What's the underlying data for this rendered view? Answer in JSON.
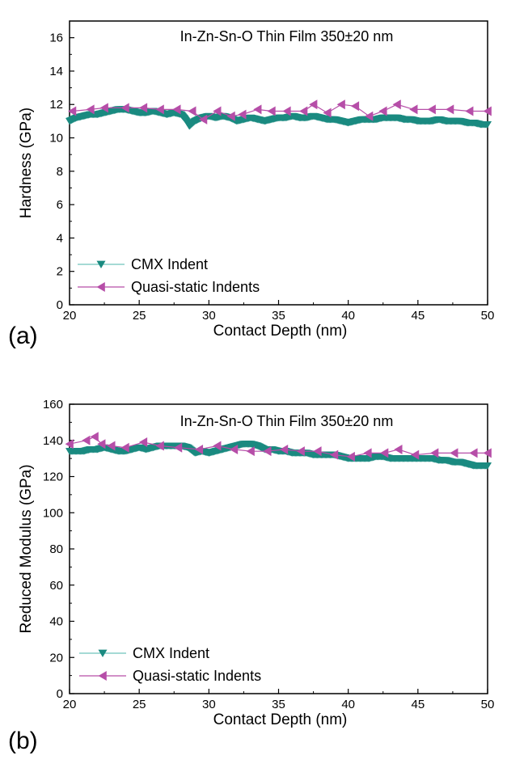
{
  "colors": {
    "cmx": "#1a8a80",
    "cmx_line": "#6fc4bc",
    "quasi": "#b64ea8",
    "axis": "#000000"
  },
  "chart_data": [
    {
      "type": "line",
      "panel_label": "(a)",
      "title": "In-Zn-Sn-O Thin Film 350±20 nm",
      "xlabel": "Contact Depth (nm)",
      "ylabel": "Hardness (GPa)",
      "xlim": [
        20,
        50
      ],
      "ylim": [
        0,
        17
      ],
      "xticks": [
        20,
        25,
        30,
        35,
        40,
        45,
        50
      ],
      "yticks": [
        0,
        2,
        4,
        6,
        8,
        10,
        12,
        14,
        16
      ],
      "legend_position": "bottom-left",
      "series": [
        {
          "name": "CMX Indent",
          "marker": "triangle-down",
          "dense": true,
          "x": [
            20,
            20.5,
            21,
            21.5,
            22,
            22.5,
            23,
            23.5,
            24,
            24.5,
            25,
            25.5,
            26,
            26.5,
            27,
            27.5,
            28,
            28.3,
            28.6,
            29,
            29.5,
            30,
            30.5,
            31,
            31.5,
            32,
            32.5,
            33,
            33.5,
            34,
            34.5,
            35,
            35.5,
            36,
            36.5,
            37,
            37.5,
            38,
            38.5,
            39,
            39.5,
            40,
            40.5,
            41,
            41.5,
            42,
            42.5,
            43,
            43.5,
            44,
            44.5,
            45,
            45.5,
            46,
            46.5,
            47,
            47.5,
            48,
            48.5,
            49,
            49.5,
            50
          ],
          "y": [
            11.0,
            11.2,
            11.3,
            11.4,
            11.4,
            11.5,
            11.6,
            11.7,
            11.7,
            11.6,
            11.5,
            11.5,
            11.6,
            11.5,
            11.4,
            11.5,
            11.4,
            11.1,
            10.7,
            11.0,
            11.2,
            11.3,
            11.2,
            11.3,
            11.2,
            11.0,
            11.1,
            11.2,
            11.1,
            11.0,
            11.1,
            11.2,
            11.2,
            11.3,
            11.2,
            11.2,
            11.3,
            11.2,
            11.1,
            11.1,
            11.0,
            10.9,
            11.0,
            11.1,
            11.1,
            11.1,
            11.2,
            11.2,
            11.2,
            11.1,
            11.1,
            11.0,
            11.0,
            11.0,
            11.1,
            11.0,
            11.0,
            11.0,
            10.9,
            10.9,
            10.8,
            10.8
          ]
        },
        {
          "name": "Quasi-static Indents",
          "marker": "triangle-left",
          "dense": false,
          "x": [
            20.2,
            21.5,
            22.5,
            24.0,
            25.3,
            26.5,
            27.7,
            28.8,
            29.6,
            30.6,
            31.6,
            32.4,
            33.5,
            34.5,
            35.6,
            36.8,
            37.5,
            38.5,
            39.5,
            40.5,
            41.5,
            42.5,
            43.5,
            44.7,
            46.0,
            47.3,
            48.7,
            50.0
          ],
          "y": [
            11.6,
            11.7,
            11.8,
            11.8,
            11.8,
            11.7,
            11.7,
            11.6,
            11.1,
            11.6,
            11.3,
            11.4,
            11.7,
            11.6,
            11.6,
            11.6,
            12.0,
            11.5,
            12.0,
            11.9,
            11.3,
            11.6,
            12.0,
            11.7,
            11.7,
            11.7,
            11.6,
            11.6
          ]
        }
      ]
    },
    {
      "type": "line",
      "panel_label": "(b)",
      "title": "In-Zn-Sn-O Thin Film 350±20 nm",
      "xlabel": "Contact Depth (nm)",
      "ylabel": "Reduced Modulus (GPa)",
      "xlim": [
        20,
        50
      ],
      "ylim": [
        0,
        160
      ],
      "xticks": [
        20,
        25,
        30,
        35,
        40,
        45,
        50
      ],
      "yticks": [
        0,
        20,
        40,
        60,
        80,
        100,
        120,
        140,
        160
      ],
      "legend_position": "bottom-left",
      "series": [
        {
          "name": "CMX Indent",
          "marker": "triangle-down",
          "dense": true,
          "x": [
            20,
            20.5,
            21,
            21.5,
            22,
            22.5,
            23,
            23.5,
            24,
            24.5,
            25,
            25.5,
            26,
            26.5,
            27,
            27.5,
            28,
            28.5,
            29,
            29.5,
            30,
            30.5,
            31,
            31.5,
            32,
            32.5,
            33,
            33.5,
            34,
            34.5,
            35,
            35.5,
            36,
            36.5,
            37,
            37.5,
            38,
            38.5,
            39,
            39.5,
            40,
            40.5,
            41,
            41.5,
            42,
            42.5,
            43,
            43.5,
            44,
            44.5,
            45,
            45.5,
            46,
            46.5,
            47,
            47.5,
            48,
            48.5,
            49,
            49.5,
            50
          ],
          "y": [
            134,
            134,
            134,
            135,
            135,
            136,
            135,
            134,
            134,
            135,
            136,
            135,
            136,
            137,
            137,
            137,
            137,
            136,
            133,
            134,
            133,
            134,
            135,
            136,
            137,
            138,
            138,
            137,
            135,
            135,
            134,
            134,
            133,
            133,
            133,
            132,
            132,
            132,
            132,
            131,
            130,
            130,
            130,
            130,
            131,
            131,
            130,
            130,
            130,
            130,
            130,
            130,
            130,
            129,
            129,
            128,
            128,
            127,
            126,
            126,
            126
          ]
        },
        {
          "name": "Quasi-static Indents",
          "marker": "triangle-left",
          "dense": false,
          "x": [
            20.0,
            21.2,
            21.8,
            22.3,
            23.0,
            24.0,
            25.3,
            26.5,
            27.8,
            29.3,
            30.6,
            31.8,
            33.0,
            34.2,
            35.4,
            36.6,
            37.8,
            39.0,
            40.2,
            41.4,
            42.6,
            43.6,
            44.8,
            46.2,
            47.6,
            49.0,
            50.0
          ],
          "y": [
            138,
            140,
            142,
            138,
            137,
            136,
            139,
            137,
            136,
            135,
            137,
            135,
            134,
            134,
            135,
            134,
            134,
            132,
            131,
            133,
            133,
            135,
            132,
            133,
            133,
            133,
            133
          ]
        }
      ]
    }
  ]
}
